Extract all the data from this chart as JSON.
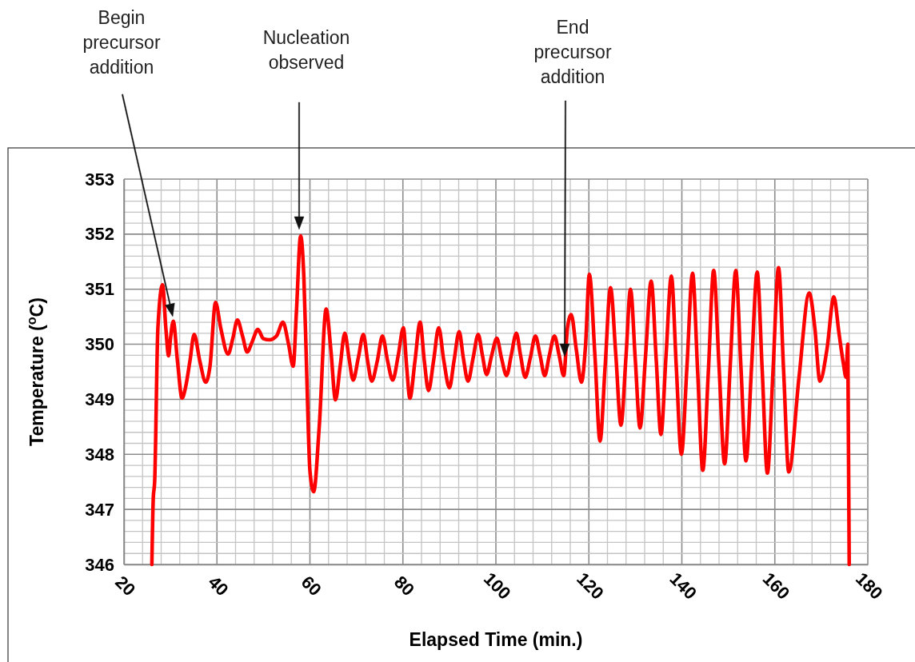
{
  "chart_data": {
    "type": "line",
    "xlabel": "Elapsed Time (min.)",
    "ylabel": "Temperature ($^{o}$C)",
    "xlim": [
      20,
      180
    ],
    "ylim": [
      346,
      353
    ],
    "xticks": [
      20,
      {
        "value": 24,
        "label": null
      },
      {
        "value": 28,
        "label": null
      },
      {
        "value": 32,
        "label": null
      },
      {
        "value": 36,
        "label": null
      },
      40,
      {
        "value": 44,
        "label": null
      },
      {
        "value": 48,
        "label": null
      },
      {
        "value": 52,
        "label": null
      },
      {
        "value": 56,
        "label": null
      },
      60,
      {
        "value": 64,
        "label": null
      },
      {
        "value": 68,
        "label": null
      },
      {
        "value": 72,
        "label": null
      },
      {
        "value": 76,
        "label": null
      },
      80,
      {
        "value": 84,
        "label": null
      },
      {
        "value": 88,
        "label": null
      },
      {
        "value": 92,
        "label": null
      },
      {
        "value": 96,
        "label": null
      },
      100,
      {
        "value": 104,
        "label": null
      },
      {
        "value": 108,
        "label": null
      },
      {
        "value": 112,
        "label": null
      },
      {
        "value": 116,
        "label": null
      },
      120,
      {
        "value": 124,
        "label": null
      },
      {
        "value": 128,
        "label": null
      },
      {
        "value": 132,
        "label": null
      },
      {
        "value": 136,
        "label": null
      },
      140,
      {
        "value": 144,
        "label": null
      },
      {
        "value": 148,
        "label": null
      },
      {
        "value": 152,
        "label": null
      },
      {
        "value": 156,
        "label": null
      },
      160,
      {
        "value": 164,
        "label": null
      },
      {
        "value": 168,
        "label": null
      },
      {
        "value": 172,
        "label": null
      },
      {
        "value": 176,
        "label": null
      },
      180
    ],
    "yticks": [
      346,
      {
        "value": 346.2,
        "label": null
      },
      {
        "value": 346.4,
        "label": null
      },
      {
        "value": 346.6,
        "label": null
      },
      {
        "value": 346.8,
        "label": null
      },
      347,
      {
        "value": 347.2,
        "label": null
      },
      {
        "value": 347.4,
        "label": null
      },
      {
        "value": 347.6,
        "label": null
      },
      {
        "value": 347.8,
        "label": null
      },
      348,
      {
        "value": 348.2,
        "label": null
      },
      {
        "value": 348.4,
        "label": null
      },
      {
        "value": 348.6,
        "label": null
      },
      {
        "value": 348.8,
        "label": null
      },
      349,
      {
        "value": 349.2,
        "label": null
      },
      {
        "value": 349.4,
        "label": null
      },
      {
        "value": 349.6,
        "label": null
      },
      {
        "value": 349.8,
        "label": null
      },
      350,
      {
        "value": 350.2,
        "label": null
      },
      {
        "value": 350.4,
        "label": null
      },
      {
        "value": 350.6,
        "label": null
      },
      {
        "value": 350.8,
        "label": null
      },
      351,
      {
        "value": 351.2,
        "label": null
      },
      {
        "value": 351.4,
        "label": null
      },
      {
        "value": 351.6,
        "label": null
      },
      {
        "value": 351.8,
        "label": null
      },
      352,
      {
        "value": 352.2,
        "label": null
      },
      {
        "value": 352.4,
        "label": null
      },
      {
        "value": 352.6,
        "label": null
      },
      {
        "value": 352.8,
        "label": null
      },
      353
    ],
    "grid": true,
    "marker": "none",
    "line_style": "solid",
    "series": [
      {
        "color": "#ff0000",
        "x": [
          26.0,
          26.3,
          26.6,
          27.3,
          28.3,
          29.0,
          29.6,
          30.0,
          30.6,
          31.5,
          32.5,
          33.2,
          34.2,
          35.1,
          36.3,
          37.6,
          38.5,
          39.7,
          40.8,
          42.4,
          43.4,
          44.4,
          45.5,
          46.5,
          47.6,
          48.8,
          50.0,
          51.3,
          52.8,
          54.2,
          55.4,
          56.4,
          57.1,
          58.0,
          58.7,
          59.3,
          60.0,
          60.8,
          62.0,
          63.5,
          64.5,
          65.5,
          66.5,
          67.5,
          68.4,
          69.3,
          70.4,
          71.5,
          72.4,
          73.3,
          74.5,
          75.6,
          76.7,
          77.8,
          79.0,
          80.1,
          80.8,
          81.5,
          82.6,
          83.7,
          84.6,
          85.5,
          86.6,
          87.7,
          88.8,
          90.0,
          91.0,
          92.1,
          93.0,
          94.0,
          95.1,
          96.2,
          97.1,
          98.0,
          99.1,
          100.2,
          101.2,
          102.3,
          103.3,
          104.4,
          105.3,
          106.3,
          107.4,
          108.5,
          109.5,
          110.5,
          111.5,
          112.6,
          113.6,
          114.6,
          115.4,
          116.2,
          117.3,
          118.4,
          119.3,
          120.1,
          121.3,
          122.4,
          123.5,
          124.65,
          125.8,
          126.9,
          128.0,
          128.95,
          130.0,
          131.0,
          132.2,
          133.4,
          134.5,
          135.5,
          136.6,
          137.75,
          138.8,
          139.9,
          141.1,
          142.3,
          143.4,
          144.5,
          145.7,
          146.85,
          148.0,
          149.2,
          150.4,
          151.6,
          152.7,
          153.8,
          155.0,
          156.2,
          157.3,
          158.4,
          159.6,
          160.8,
          161.9,
          163.0,
          165.2,
          167.4,
          168.6,
          169.7,
          171.2,
          172.7,
          173.8,
          174.8,
          175.3,
          175.7,
          176.0
        ],
        "values": [
          346.0,
          347.2,
          347.5,
          350.3,
          351.08,
          350.3,
          349.79,
          350.1,
          350.42,
          349.7,
          349.02,
          349.2,
          349.7,
          350.18,
          349.7,
          349.31,
          349.6,
          350.76,
          350.3,
          349.82,
          350.1,
          350.44,
          350.15,
          349.86,
          350.05,
          350.27,
          350.1,
          350.08,
          350.15,
          350.4,
          350.0,
          349.6,
          350.6,
          351.97,
          351.2,
          349.5,
          347.7,
          347.32,
          348.5,
          350.64,
          349.9,
          348.99,
          349.6,
          350.2,
          349.75,
          349.35,
          349.75,
          350.18,
          349.7,
          349.33,
          349.7,
          350.15,
          349.7,
          349.35,
          349.8,
          350.3,
          349.6,
          349.02,
          349.7,
          350.4,
          349.7,
          349.16,
          349.7,
          350.3,
          349.7,
          349.21,
          349.7,
          350.23,
          349.75,
          349.33,
          349.75,
          350.18,
          349.8,
          349.45,
          349.8,
          350.11,
          349.75,
          349.43,
          349.8,
          350.2,
          349.8,
          349.4,
          349.75,
          350.15,
          349.8,
          349.43,
          349.8,
          350.15,
          349.8,
          349.43,
          350.3,
          350.54,
          349.9,
          349.31,
          350.0,
          351.27,
          349.8,
          348.24,
          349.6,
          351.03,
          349.8,
          348.53,
          349.8,
          351.0,
          349.7,
          348.48,
          349.8,
          351.15,
          349.7,
          348.36,
          349.8,
          351.24,
          349.6,
          348.0,
          349.6,
          351.29,
          349.5,
          347.71,
          349.5,
          351.34,
          349.6,
          347.83,
          349.6,
          351.34,
          349.6,
          347.88,
          349.6,
          351.31,
          349.5,
          347.66,
          349.5,
          351.39,
          349.5,
          347.68,
          349.4,
          350.93,
          350.3,
          349.33,
          349.9,
          350.86,
          350.2,
          349.62,
          349.4,
          350.0,
          346.0
        ]
      }
    ],
    "annotations": [
      "Begin precursor addition",
      "Nucleation observed",
      "End precursor addition"
    ]
  }
}
